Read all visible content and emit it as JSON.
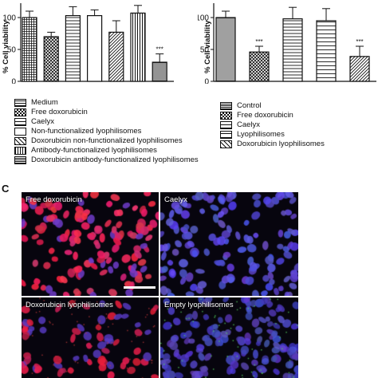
{
  "chart_data": [
    {
      "type": "bar",
      "ylabel": "% Cell viability",
      "ylim": [
        0,
        115
      ],
      "yticks": [
        0,
        50,
        100
      ],
      "grid": false,
      "legend_position": "below",
      "series": [
        {
          "name": "Medium",
          "pattern": "p-med",
          "value": 100,
          "error": 10,
          "annotation": ""
        },
        {
          "name": "Free doxorubicin",
          "pattern": "p-free",
          "value": 70,
          "error": 7,
          "annotation": ""
        },
        {
          "name": "Caelyx",
          "pattern": "p-caelyx",
          "value": 103,
          "error": 14,
          "annotation": ""
        },
        {
          "name": "Non-functionalized lyophilisomes",
          "pattern": "p-empty",
          "value": 103,
          "error": 9,
          "annotation": ""
        },
        {
          "name": "Doxorubicin non-functionalized lyophilisomes",
          "pattern": "p-dox",
          "value": 77,
          "error": 18,
          "annotation": ""
        },
        {
          "name": "Antibody-functionalized lyophilisomes",
          "pattern": "p-anti",
          "value": 107,
          "error": 12,
          "annotation": ""
        },
        {
          "name": "Doxorubicin antibody-functionalized lyophilisomes",
          "pattern": "p-doxanti",
          "value": 30,
          "error": 13,
          "annotation": "***"
        }
      ]
    },
    {
      "type": "bar",
      "ylabel": "% Cell viability",
      "ylim": [
        0,
        115
      ],
      "yticks": [
        0,
        50,
        100
      ],
      "grid": false,
      "legend_position": "below",
      "series": [
        {
          "name": "Control",
          "pattern": "p-ctrl",
          "value": 100,
          "error": 10,
          "annotation": ""
        },
        {
          "name": "Free doxorubicin",
          "pattern": "p-free",
          "value": 46,
          "error": 9,
          "annotation": "***"
        },
        {
          "name": "Caelyx",
          "pattern": "p-caelyx",
          "value": 98,
          "error": 18,
          "annotation": ""
        },
        {
          "name": "Lyophilisomes",
          "pattern": "p-lyo",
          "value": 95,
          "error": 19,
          "annotation": ""
        },
        {
          "name": "Doxorubicin lyophilisomes",
          "pattern": "p-dox",
          "value": 39,
          "error": 16,
          "annotation": "***"
        }
      ]
    }
  ],
  "panel_c": {
    "letter": "C",
    "images": [
      {
        "label": "Free doxorubicin",
        "stain": "red-nuclei"
      },
      {
        "label": "Caelyx",
        "stain": "blue-nuclei"
      },
      {
        "label": "Doxorubicin lyophilisomes",
        "stain": "sparse-red"
      },
      {
        "label": "Empty lyophilisomes",
        "stain": "blue-with-green"
      }
    ]
  }
}
